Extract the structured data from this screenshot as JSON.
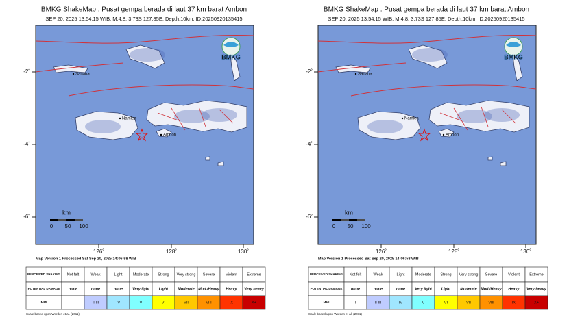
{
  "panels": [
    {
      "title": "BMKG ShakeMap : Pusat gempa berada di laut 37 km barat Ambon",
      "subtitle": "SEP 20, 2025 13:54:15 WIB, M:4.8, 3.73S 127.85E, Depth:10km, ID:20250920135415",
      "lat_labels": [
        "-2˚",
        "-4˚",
        "-6˚"
      ],
      "lon_labels": [
        "126˚",
        "128˚",
        "130˚"
      ],
      "places": [
        "Sanana",
        "Namlea",
        "Ambon"
      ],
      "logo": "BMKG",
      "scale": {
        "unit": "km",
        "ticks": [
          "0",
          "50",
          "100"
        ]
      },
      "version": "Map Version 1 Processed Sat Sep 20, 2025 14:06:58 WIB",
      "legend": [
        [
          "PERCEIVED SHAKING",
          "Not felt",
          "Weak",
          "Light",
          "Moderate",
          "Strong",
          "Very strong",
          "Severe",
          "Violent",
          "Extreme"
        ],
        [
          "POTENTIAL DAMAGE",
          "none",
          "none",
          "none",
          "Very light",
          "Light",
          "Moderate",
          "Mod./Heavy",
          "Heavy",
          "Very heavy"
        ],
        [
          "MMI",
          "I",
          "II-III",
          "IV",
          "V",
          "VI",
          "VII",
          "VIII",
          "IX",
          "X+"
        ]
      ],
      "footnote": "Scale based upon Worden et al. (2011)"
    },
    {
      "title": "BMKG ShakeMap : Pusat gempa berada di laut 37 km barat Ambon",
      "subtitle": "SEP 20, 2025 13:54:15 WIB, M:4.8, 3.73S 127.85E, Depth:10km, ID:20250920135415",
      "lat_labels": [
        "-2˚",
        "-4˚",
        "-6˚"
      ],
      "lon_labels": [
        "126˚",
        "128˚",
        "130˚"
      ],
      "places": [
        "Sanana",
        "Namlea",
        "Ambon"
      ],
      "logo": "BMKG",
      "scale": {
        "unit": "km",
        "ticks": [
          "0",
          "50",
          "100"
        ]
      },
      "version": "Map Version 1 Processed Sat Sep 20, 2025 14:06:58 WIB",
      "legend": [
        [
          "PERCEIVED SHAKING",
          "Not felt",
          "Weak",
          "Light",
          "Moderate",
          "Strong",
          "Very strong",
          "Severe",
          "Violent",
          "Extreme"
        ],
        [
          "POTENTIAL DAMAGE",
          "none",
          "none",
          "none",
          "Very light",
          "Light",
          "Moderate",
          "Mod./Heavy",
          "Heavy",
          "Very heavy"
        ],
        [
          "MMI",
          "I",
          "II-III",
          "IV",
          "V",
          "VI",
          "VII",
          "VIII",
          "IX",
          "X+"
        ]
      ],
      "footnote": "Scale based upon Worden et al. (2011)"
    }
  ]
}
